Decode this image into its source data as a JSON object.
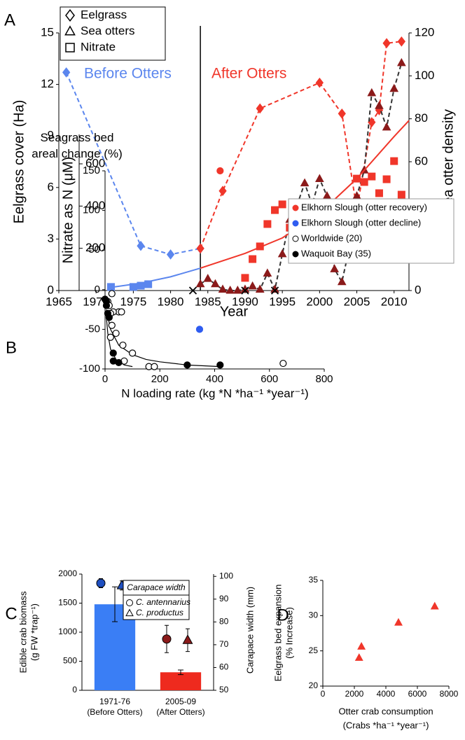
{
  "chart_data": [
    {
      "type": "line",
      "panel_label": "A",
      "xlabel": "Year",
      "ylabel": "Eelgrass cover (Ha)",
      "y2label": "Sea otter density",
      "y3label": "Nitrate as N (μM)",
      "xlim": [
        1965,
        2012
      ],
      "xticks": [
        1965,
        1970,
        1975,
        1980,
        1985,
        1990,
        1995,
        2000,
        2005,
        2010
      ],
      "ylim": [
        0,
        15
      ],
      "yticks": [
        0,
        3,
        6,
        9,
        12,
        15
      ],
      "y2lim": [
        0,
        120
      ],
      "y2ticks": [
        0,
        20,
        40,
        60,
        80,
        100,
        120
      ],
      "y3lim": [
        0,
        1220
      ],
      "y3ticks": [
        200,
        400,
        600
      ],
      "legend": [
        {
          "name": "Eelgrass",
          "marker": "diamond"
        },
        {
          "name": "Sea otters",
          "marker": "triangle"
        },
        {
          "name": "Nitrate",
          "marker": "square"
        }
      ],
      "annotations": [
        {
          "text": "Before Otters",
          "color": "#5b86ee"
        },
        {
          "text": "After Otters",
          "color": "#f0362a"
        }
      ],
      "divider_x": 1984,
      "x_markers": [
        1983,
        1990,
        1994
      ],
      "series": [
        {
          "x": [
            1966,
            1976,
            1980,
            1984
          ],
          "values": [
            12.7,
            2.6,
            2.1,
            2.45
          ],
          "color": "#5b86ee",
          "marker": "diamond",
          "line": "dashed",
          "axis": "y"
        },
        {
          "x": [
            1984,
            1987,
            1992,
            2000,
            2003,
            2005,
            2007,
            2008,
            2009,
            2011
          ],
          "values": [
            2.45,
            5.8,
            10.6,
            12.1,
            10.3,
            4.7,
            9.8,
            10.5,
            14.4,
            14.5
          ],
          "color": "#f0362a",
          "marker": "diamond",
          "line": "dashed",
          "axis": "y"
        },
        {
          "x": [
            1984,
            1985,
            1986,
            1987,
            1988,
            1989,
            1990,
            1991,
            1992,
            1993,
            1994,
            1995,
            1996,
            1997,
            1998,
            1999,
            2000,
            2001,
            2002,
            2003,
            2004,
            2005,
            2006,
            2007,
            2008,
            2009,
            2010,
            2011
          ],
          "values": [
            3,
            5.5,
            3,
            0.5,
            0,
            0,
            0.5,
            2,
            0.5,
            8,
            0.5,
            17,
            33,
            40,
            50,
            40,
            52,
            44,
            10,
            4,
            20,
            44,
            56,
            92,
            86,
            76,
            94,
            106
          ],
          "color": "#8b1a1a",
          "line_color": "#333333",
          "marker": "triangle",
          "line": "dashed",
          "axis": "y2"
        },
        {
          "x": [
            1972,
            1975,
            1976,
            1977
          ],
          "values": [
            17,
            17,
            23,
            30
          ],
          "color": "#5b86ee",
          "marker": "square",
          "line": "none",
          "axis": "y3"
        },
        {
          "x": [
            1990,
            1991,
            1992,
            1993,
            1994,
            1995,
            1996,
            1997,
            1998,
            1999,
            2000,
            2001,
            2002,
            2003,
            2004,
            2005,
            2006,
            2007,
            2008,
            2009,
            2010,
            2011
          ],
          "values": [
            60,
            149,
            209,
            315,
            381,
            408,
            298,
            348,
            398,
            242,
            262,
            298,
            149,
            288,
            328,
            530,
            514,
            540,
            461,
            527,
            613,
            454
          ],
          "color": "#f0362a",
          "marker": "square",
          "line": "none",
          "axis": "y3"
        },
        {
          "x": [
            1972,
            1976,
            1980,
            1984
          ],
          "values": [
            15,
            35,
            65,
            106
          ],
          "color": "#5b86ee",
          "marker": "none",
          "line": "solid",
          "axis": "y3"
        },
        {
          "x": [
            1984,
            1990,
            1995,
            2000,
            2005,
            2010,
            2012
          ],
          "values": [
            106,
            176,
            249,
            365,
            530,
            729,
            805
          ],
          "color": "#f0362a",
          "marker": "none",
          "line": "solid",
          "axis": "y3"
        }
      ]
    },
    {
      "type": "scatter",
      "panel_label": "B",
      "xlabel": "N loading rate (kg *N *ha⁻¹ *year⁻¹)",
      "ylabel": [
        "Seagrass bed",
        "areal change (%)"
      ],
      "xlim": [
        0,
        800
      ],
      "xticks": [
        0,
        200,
        400,
        600,
        800
      ],
      "ylim": [
        -100,
        150
      ],
      "yticks": [
        -100,
        -50,
        0,
        50,
        100,
        150
      ],
      "series": [
        {
          "name": "Elkhorn Slough (otter recovery)",
          "color": "#f0362a",
          "marker": "circle",
          "x": [
            420
          ],
          "values": [
            150
          ]
        },
        {
          "name": "Elkhorn Slough (otter decline)",
          "color": "#2f5cf0",
          "marker": "circle",
          "x": [
            345
          ],
          "values": [
            -50
          ]
        },
        {
          "name": "Worldwide (20)",
          "color": "#000000",
          "marker": "open-circle",
          "x": [
            650,
            100,
            160,
            180,
            70,
            65,
            50,
            30,
            25,
            20,
            10,
            25,
            40,
            20,
            15,
            60
          ],
          "values": [
            -93,
            -80,
            -97,
            -97,
            -90,
            -70,
            -28,
            -28,
            -5,
            -30,
            -15,
            -45,
            -55,
            -60,
            -20,
            -28
          ]
        },
        {
          "name": "Waquoit Bay (35)",
          "color": "#000000",
          "marker": "circle",
          "x": [
            0,
            5,
            10,
            15,
            30,
            30,
            50,
            300,
            420,
            5
          ],
          "values": [
            -12,
            -15,
            -30,
            -35,
            -80,
            -90,
            -92,
            -95,
            -95,
            -20
          ]
        }
      ],
      "fits": [
        {
          "x": [
            5,
            20,
            50,
            100,
            150,
            200,
            300,
            420
          ],
          "values": [
            -25,
            -50,
            -70,
            -82,
            -88,
            -91,
            -95,
            -97
          ]
        },
        {
          "x": [
            5,
            10,
            20,
            40,
            70,
            100
          ],
          "values": [
            -35,
            -55,
            -75,
            -88,
            -95,
            -97
          ]
        }
      ]
    },
    {
      "type": "bar",
      "panel_label": "C",
      "ylabel": [
        "Edible crab biomass",
        "(g FW *trap⁻¹)"
      ],
      "y2label": "Carapace width (mm)",
      "categories": [
        "1971-76",
        "2005-09"
      ],
      "category_notes": [
        "(Before Otters)",
        "(After Otters)"
      ],
      "ylim": [
        0,
        2000
      ],
      "yticks": [
        0,
        500,
        1000,
        1500,
        2000
      ],
      "y2lim": [
        50,
        101
      ],
      "y2ticks": [
        50,
        60,
        70,
        80,
        90,
        100
      ],
      "values": [
        1480,
        310
      ],
      "errors": [
        300,
        40
      ],
      "colors": [
        "#3a7ef5",
        "#ee2a1e"
      ],
      "legend_title": "Carapace width",
      "points": [
        {
          "name": "C. antennarius",
          "marker": "circle",
          "colors": [
            "#1f4fc0",
            "#8b1a1a"
          ],
          "values": [
            97,
            72.5
          ],
          "errors": [
            2,
            6
          ]
        },
        {
          "name": "C. productus",
          "marker": "triangle",
          "colors": [
            "#1f4fc0",
            "#8b1a1a"
          ],
          "values": [
            96,
            72
          ],
          "errors": [
            2,
            5
          ]
        }
      ]
    },
    {
      "type": "scatter",
      "panel_label": "D",
      "xlabel": [
        "Otter crab consumption",
        "(Crabs *ha⁻¹ *year⁻¹)"
      ],
      "ylabel": [
        "Eelgrass bed expansion",
        "(% Increase)"
      ],
      "xlim": [
        0,
        8000
      ],
      "xticks": [
        0,
        2000,
        4000,
        6000,
        8000
      ],
      "ylim": [
        20,
        35
      ],
      "yticks": [
        20,
        25,
        30,
        35
      ],
      "series": [
        {
          "color": "#f0362a",
          "marker": "triangle",
          "x": [
            2300,
            2450,
            4800,
            7100
          ],
          "values": [
            24,
            25.6,
            29,
            31.3
          ]
        }
      ]
    }
  ]
}
